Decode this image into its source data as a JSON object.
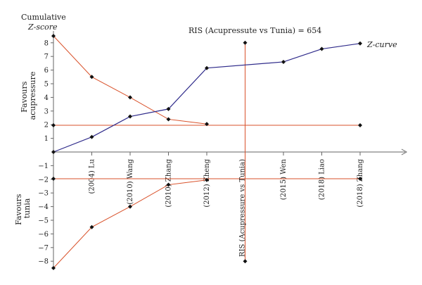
{
  "chart_data": {
    "type": "line",
    "ylim": [
      -8.5,
      9
    ],
    "y_ticks": [
      -8,
      -7,
      -6,
      -5,
      -4,
      -3,
      -2,
      -1,
      1,
      2,
      3,
      4,
      5,
      6,
      7,
      8
    ],
    "x_positions": [
      0,
      1,
      2,
      3,
      4,
      5,
      6,
      7,
      8
    ],
    "x_labels": [
      {
        "pos": 1,
        "text": "(2004) Lu"
      },
      {
        "pos": 2,
        "text": "(2010) Wang"
      },
      {
        "pos": 3,
        "text": "(2010) Zhang"
      },
      {
        "pos": 4,
        "text": "(2012) Zheng"
      },
      {
        "pos": 6,
        "text": "(2015) Wen"
      },
      {
        "pos": 7,
        "text": "(2018) Liao"
      },
      {
        "pos": 8,
        "text": "(2018) Zhang"
      }
    ],
    "y_title_line1": "Cumulative",
    "y_title_line2": "Z-score",
    "favours_top": [
      "Favours",
      "acupressure"
    ],
    "favours_bottom": [
      "Favours",
      "tunia"
    ],
    "series": [
      {
        "name": "Z-curve",
        "color": "#2e2a8a",
        "x": [
          0,
          1,
          2,
          3,
          4,
          6,
          7,
          8
        ],
        "y": [
          0,
          1.1,
          2.6,
          3.15,
          6.15,
          6.6,
          7.55,
          7.95
        ]
      }
    ],
    "upper_boundary": {
      "color": "#d9522b",
      "x": [
        0,
        1,
        2,
        3,
        4
      ],
      "y": [
        8.5,
        5.5,
        4.0,
        2.4,
        2.05
      ]
    },
    "lower_boundary": {
      "color": "#d9522b",
      "x": [
        0,
        1,
        2,
        3,
        4
      ],
      "y": [
        -8.5,
        -5.5,
        -4.0,
        -2.4,
        -2.05
      ]
    },
    "conventional_boundary": {
      "color": "#d9522b",
      "upper": 1.96,
      "lower": -1.96
    },
    "ris": {
      "x": 5,
      "label": "RIS (Acupressute vs Tunia) = 654",
      "axis_label": "RIS (Acupressure vs Tunia)",
      "top": 8,
      "bottom": -8,
      "color": "#d9522b"
    }
  }
}
